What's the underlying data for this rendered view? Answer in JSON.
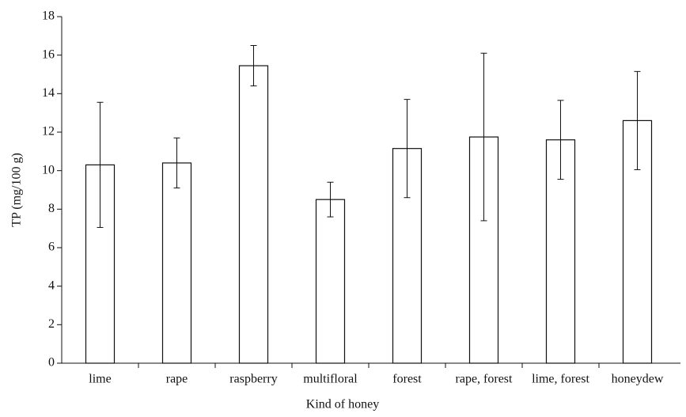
{
  "chart_data": {
    "type": "bar",
    "categories": [
      "lime",
      "rape",
      "raspberry",
      "multifloral",
      "forest",
      "rape, forest",
      "lime, forest",
      "honeydew"
    ],
    "values": [
      10.3,
      10.4,
      15.45,
      8.5,
      11.15,
      11.75,
      11.6,
      12.6
    ],
    "errors": [
      3.25,
      1.3,
      1.05,
      0.9,
      2.55,
      4.35,
      2.05,
      2.55
    ],
    "color": "#ffffff",
    "ylim": [
      0,
      18
    ],
    "yticks": [
      0,
      2,
      4,
      6,
      8,
      10,
      12,
      14,
      16,
      18
    ],
    "xlabel": "Kind of honey",
    "ylabel": "TP (mg/100 g)",
    "grid": false
  }
}
